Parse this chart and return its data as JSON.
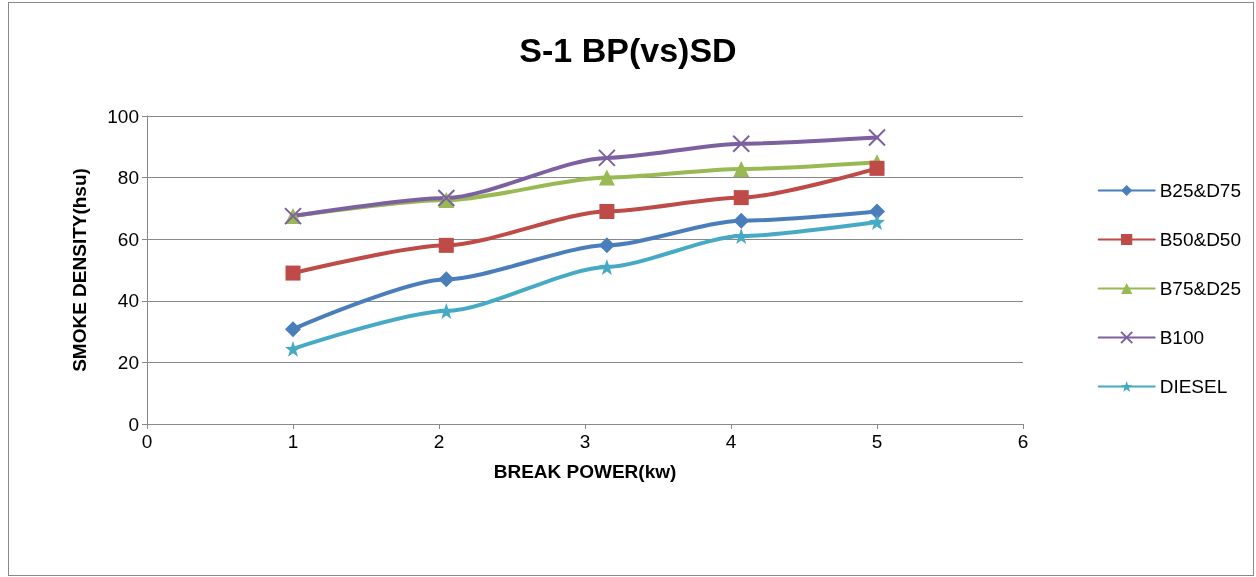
{
  "chart_data": {
    "type": "line",
    "title": "S-1 BP(vs)SD",
    "xlabel": "BREAK POWER(kw)",
    "ylabel": "SMOKE DENSITY(hsu)",
    "x": [
      1,
      2.05,
      3.15,
      4.07,
      5
    ],
    "series": [
      {
        "name": "B25&D75",
        "color": "#4a7ebb",
        "marker": "diamond",
        "values": [
          30.8,
          47,
          58,
          66,
          69
        ]
      },
      {
        "name": "B50&D50",
        "color": "#be4b48",
        "marker": "square",
        "values": [
          49,
          58,
          69,
          73.5,
          83
        ]
      },
      {
        "name": "B75&D25",
        "color": "#98b954",
        "marker": "triangle",
        "values": [
          67.5,
          72.7,
          80,
          82.8,
          85
        ]
      },
      {
        "name": "B100",
        "color": "#7d60a0",
        "marker": "cross",
        "values": [
          67.5,
          73.4,
          86.4,
          91,
          93
        ]
      },
      {
        "name": "DIESEL",
        "color": "#46aac5",
        "marker": "star",
        "values": [
          24.4,
          36.7,
          51,
          61,
          65.6
        ]
      }
    ],
    "xlim": [
      0,
      6
    ],
    "xticks": [
      0,
      1,
      2,
      3,
      4,
      5,
      6
    ],
    "ylim": [
      0,
      100
    ],
    "yticks": [
      0,
      20,
      40,
      60,
      80,
      100
    ],
    "grid": "y",
    "legend": "right",
    "line_style": "solid"
  }
}
